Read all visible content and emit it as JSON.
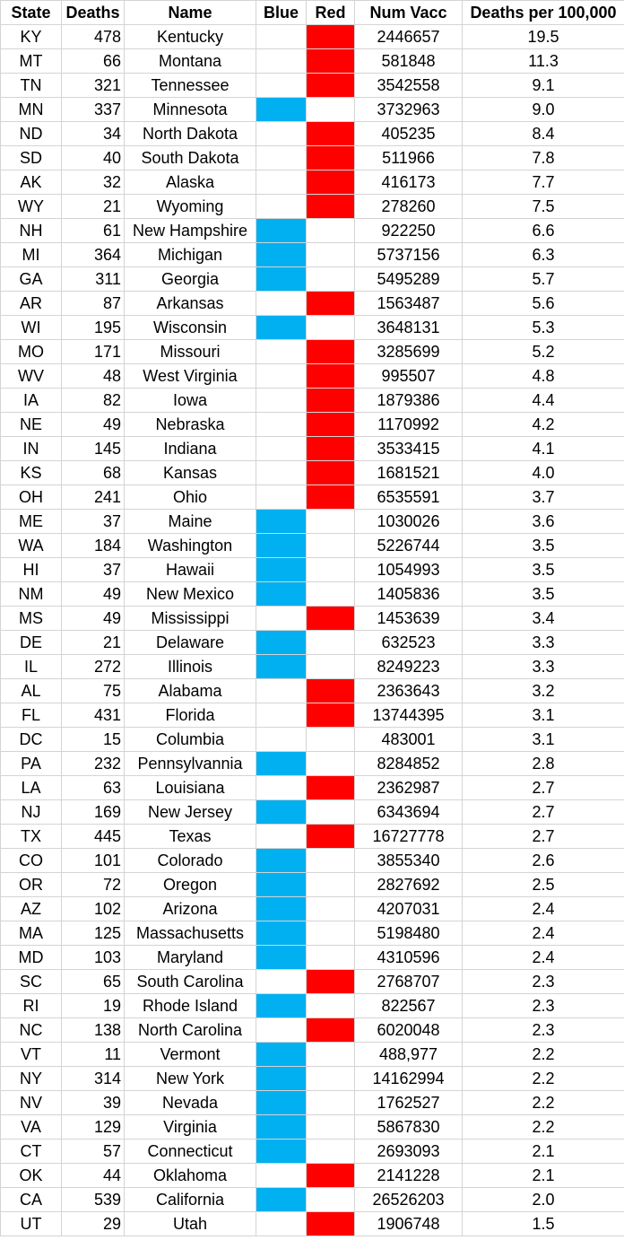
{
  "headers": {
    "state": "State",
    "deaths": "Deaths",
    "name": "Name",
    "blue": "Blue",
    "red": "Red",
    "num_vacc": "Num Vacc",
    "rate": "Deaths per 100,000"
  },
  "colors": {
    "blue": "#00b0f0",
    "red": "#ff0000"
  },
  "rows": [
    {
      "state": "KY",
      "deaths": "478",
      "name": "Kentucky",
      "party": "red",
      "vacc": "2446657",
      "rate": "19.5"
    },
    {
      "state": "MT",
      "deaths": "66",
      "name": "Montana",
      "party": "red",
      "vacc": "581848",
      "rate": "11.3"
    },
    {
      "state": "TN",
      "deaths": "321",
      "name": "Tennessee",
      "party": "red",
      "vacc": "3542558",
      "rate": "9.1"
    },
    {
      "state": "MN",
      "deaths": "337",
      "name": "Minnesota",
      "party": "blue",
      "vacc": "3732963",
      "rate": "9.0"
    },
    {
      "state": "ND",
      "deaths": "34",
      "name": "North Dakota",
      "party": "red",
      "vacc": "405235",
      "rate": "8.4"
    },
    {
      "state": "SD",
      "deaths": "40",
      "name": "South Dakota",
      "party": "red",
      "vacc": "511966",
      "rate": "7.8"
    },
    {
      "state": "AK",
      "deaths": "32",
      "name": "Alaska",
      "party": "red",
      "vacc": "416173",
      "rate": "7.7"
    },
    {
      "state": "WY",
      "deaths": "21",
      "name": "Wyoming",
      "party": "red",
      "vacc": "278260",
      "rate": "7.5"
    },
    {
      "state": "NH",
      "deaths": "61",
      "name": "New Hampshire",
      "party": "blue",
      "vacc": "922250",
      "rate": "6.6"
    },
    {
      "state": "MI",
      "deaths": "364",
      "name": "Michigan",
      "party": "blue",
      "vacc": "5737156",
      "rate": "6.3"
    },
    {
      "state": "GA",
      "deaths": "311",
      "name": "Georgia",
      "party": "blue",
      "vacc": "5495289",
      "rate": "5.7"
    },
    {
      "state": "AR",
      "deaths": "87",
      "name": "Arkansas",
      "party": "red",
      "vacc": "1563487",
      "rate": "5.6"
    },
    {
      "state": "WI",
      "deaths": "195",
      "name": "Wisconsin",
      "party": "blue",
      "vacc": "3648131",
      "rate": "5.3"
    },
    {
      "state": "MO",
      "deaths": "171",
      "name": "Missouri",
      "party": "red",
      "vacc": "3285699",
      "rate": "5.2"
    },
    {
      "state": "WV",
      "deaths": "48",
      "name": "West Virginia",
      "party": "red",
      "vacc": "995507",
      "rate": "4.8"
    },
    {
      "state": "IA",
      "deaths": "82",
      "name": "Iowa",
      "party": "red",
      "vacc": "1879386",
      "rate": "4.4"
    },
    {
      "state": "NE",
      "deaths": "49",
      "name": "Nebraska",
      "party": "red",
      "vacc": "1170992",
      "rate": "4.2"
    },
    {
      "state": "IN",
      "deaths": "145",
      "name": "Indiana",
      "party": "red",
      "vacc": "3533415",
      "rate": "4.1"
    },
    {
      "state": "KS",
      "deaths": "68",
      "name": "Kansas",
      "party": "red",
      "vacc": "1681521",
      "rate": "4.0"
    },
    {
      "state": "OH",
      "deaths": "241",
      "name": "Ohio",
      "party": "red",
      "vacc": "6535591",
      "rate": "3.7"
    },
    {
      "state": "ME",
      "deaths": "37",
      "name": "Maine",
      "party": "blue",
      "vacc": "1030026",
      "rate": "3.6"
    },
    {
      "state": "WA",
      "deaths": "184",
      "name": "Washington",
      "party": "blue",
      "vacc": "5226744",
      "rate": "3.5"
    },
    {
      "state": "HI",
      "deaths": "37",
      "name": "Hawaii",
      "party": "blue",
      "vacc": "1054993",
      "rate": "3.5"
    },
    {
      "state": "NM",
      "deaths": "49",
      "name": "New Mexico",
      "party": "blue",
      "vacc": "1405836",
      "rate": "3.5"
    },
    {
      "state": "MS",
      "deaths": "49",
      "name": "Mississippi",
      "party": "red",
      "vacc": "1453639",
      "rate": "3.4"
    },
    {
      "state": "DE",
      "deaths": "21",
      "name": "Delaware",
      "party": "blue",
      "vacc": "632523",
      "rate": "3.3"
    },
    {
      "state": "IL",
      "deaths": "272",
      "name": "Illinois",
      "party": "blue",
      "vacc": "8249223",
      "rate": "3.3"
    },
    {
      "state": "AL",
      "deaths": "75",
      "name": "Alabama",
      "party": "red",
      "vacc": "2363643",
      "rate": "3.2"
    },
    {
      "state": "FL",
      "deaths": "431",
      "name": "Florida",
      "party": "red",
      "vacc": "13744395",
      "rate": "3.1"
    },
    {
      "state": "DC",
      "deaths": "15",
      "name": "Columbia",
      "party": "",
      "vacc": "483001",
      "rate": "3.1"
    },
    {
      "state": "PA",
      "deaths": "232",
      "name": "Pennsylvannia",
      "party": "blue",
      "vacc": "8284852",
      "rate": "2.8"
    },
    {
      "state": "LA",
      "deaths": "63",
      "name": "Louisiana",
      "party": "red",
      "vacc": "2362987",
      "rate": "2.7"
    },
    {
      "state": "NJ",
      "deaths": "169",
      "name": "New Jersey",
      "party": "blue",
      "vacc": "6343694",
      "rate": "2.7"
    },
    {
      "state": "TX",
      "deaths": "445",
      "name": "Texas",
      "party": "red",
      "vacc": "16727778",
      "rate": "2.7"
    },
    {
      "state": "CO",
      "deaths": "101",
      "name": "Colorado",
      "party": "blue",
      "vacc": "3855340",
      "rate": "2.6"
    },
    {
      "state": "OR",
      "deaths": "72",
      "name": "Oregon",
      "party": "blue",
      "vacc": "2827692",
      "rate": "2.5"
    },
    {
      "state": "AZ",
      "deaths": "102",
      "name": "Arizona",
      "party": "blue",
      "vacc": "4207031",
      "rate": "2.4"
    },
    {
      "state": "MA",
      "deaths": "125",
      "name": "Massachusetts",
      "party": "blue",
      "vacc": "5198480",
      "rate": "2.4"
    },
    {
      "state": "MD",
      "deaths": "103",
      "name": "Maryland",
      "party": "blue",
      "vacc": "4310596",
      "rate": "2.4"
    },
    {
      "state": "SC",
      "deaths": "65",
      "name": "South Carolina",
      "party": "red",
      "vacc": "2768707",
      "rate": "2.3"
    },
    {
      "state": "RI",
      "deaths": "19",
      "name": "Rhode Island",
      "party": "blue",
      "vacc": "822567",
      "rate": "2.3"
    },
    {
      "state": "NC",
      "deaths": "138",
      "name": "North Carolina",
      "party": "red",
      "vacc": "6020048",
      "rate": "2.3"
    },
    {
      "state": "VT",
      "deaths": "11",
      "name": "Vermont",
      "party": "blue",
      "vacc": "488,977",
      "rate": "2.2"
    },
    {
      "state": "NY",
      "deaths": "314",
      "name": "New York",
      "party": "blue",
      "vacc": "14162994",
      "rate": "2.2"
    },
    {
      "state": "NV",
      "deaths": "39",
      "name": "Nevada",
      "party": "blue",
      "vacc": "1762527",
      "rate": "2.2"
    },
    {
      "state": "VA",
      "deaths": "129",
      "name": "Virginia",
      "party": "blue",
      "vacc": "5867830",
      "rate": "2.2"
    },
    {
      "state": "CT",
      "deaths": "57",
      "name": "Connecticut",
      "party": "blue",
      "vacc": "2693093",
      "rate": "2.1"
    },
    {
      "state": "OK",
      "deaths": "44",
      "name": "Oklahoma",
      "party": "red",
      "vacc": "2141228",
      "rate": "2.1"
    },
    {
      "state": "CA",
      "deaths": "539",
      "name": "California",
      "party": "blue",
      "vacc": "26526203",
      "rate": "2.0"
    },
    {
      "state": "UT",
      "deaths": "29",
      "name": "Utah",
      "party": "red",
      "vacc": "1906748",
      "rate": "1.5"
    }
  ]
}
